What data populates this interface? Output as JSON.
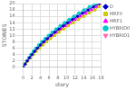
{
  "chart_data": {
    "type": "line",
    "xlabel": "story",
    "ylabel": "STORIES",
    "xlim": [
      0,
      18
    ],
    "ylim": [
      0,
      20
    ],
    "xticks": [
      0,
      2,
      4,
      6,
      8,
      10,
      12,
      14,
      16,
      18
    ],
    "yticks": [
      0,
      2,
      4,
      6,
      8,
      10,
      12,
      14,
      16,
      18,
      20
    ],
    "grid": true,
    "legend": "right",
    "series": [
      {
        "name": "D",
        "color": "#0000cc",
        "marker": "diamond",
        "x": [
          0,
          0.45,
          0.95,
          1.5,
          2.05,
          2.65,
          3.3,
          4.0,
          4.75,
          5.55,
          6.4,
          7.3,
          8.25,
          9.25,
          10.3,
          11.4,
          12.55,
          13.75,
          15.0,
          16.3,
          17.6
        ],
        "values": [
          0,
          1,
          2,
          3,
          4,
          5,
          6,
          7,
          8,
          9,
          10,
          11,
          12,
          13,
          14,
          15,
          16,
          17,
          18,
          19,
          20
        ]
      },
      {
        "name": "MRF0",
        "color": "#cccc00",
        "marker": "square",
        "x": [
          0,
          0.55,
          1.1,
          1.7,
          2.35,
          3.05,
          3.8,
          4.6,
          5.45,
          6.35,
          7.3,
          8.3,
          9.35,
          10.45,
          11.6,
          12.8,
          14.05,
          15.3,
          16.6,
          17.5,
          17.8
        ],
        "values": [
          0,
          1,
          2,
          3,
          4,
          5,
          6,
          7,
          8,
          9,
          10,
          11,
          12,
          13,
          14,
          15,
          16,
          17,
          18,
          19,
          20
        ]
      },
      {
        "name": "MRF1",
        "color": "#ff00ff",
        "marker": "triangle_up",
        "x": [
          0,
          0.5,
          1.0,
          1.55,
          2.15,
          2.8,
          3.5,
          4.25,
          5.05,
          5.9,
          6.8,
          7.75,
          8.75,
          9.8,
          10.9,
          12.05,
          13.25,
          14.5,
          15.8,
          17.1,
          17.9
        ],
        "values": [
          0,
          1,
          2,
          3,
          4,
          5,
          6,
          7,
          8,
          9,
          10,
          11,
          12,
          13,
          14,
          15,
          16,
          17,
          18,
          19,
          20
        ]
      },
      {
        "name": "HYBRID0",
        "color": "#00cccc",
        "marker": "circle",
        "x": [
          0,
          0.4,
          0.85,
          1.3,
          1.8,
          2.35,
          2.95,
          3.6,
          4.3,
          5.05,
          5.85,
          6.7,
          7.6,
          8.55,
          9.55,
          10.6,
          11.7,
          12.85,
          14.05,
          15.3,
          16.6
        ],
        "values": [
          0,
          1,
          2,
          3,
          4,
          5,
          6,
          7,
          8,
          9,
          10,
          11,
          12,
          13,
          14,
          15,
          16,
          17,
          18,
          19,
          20
        ]
      },
      {
        "name": "HYBRID1",
        "color": "#ff69b4",
        "marker": "triangle_down",
        "x": [
          0,
          0.45,
          0.9,
          1.4,
          1.95,
          2.55,
          3.2,
          3.9,
          4.65,
          5.45,
          6.3,
          7.2,
          8.15,
          9.15,
          10.2,
          11.3,
          12.45,
          13.65,
          14.9,
          16.2,
          17.5
        ],
        "values": [
          0,
          1,
          2,
          3,
          4,
          5,
          6,
          7,
          8,
          9,
          10,
          11,
          12,
          13,
          14,
          15,
          16,
          17,
          18,
          19,
          20
        ]
      }
    ]
  }
}
